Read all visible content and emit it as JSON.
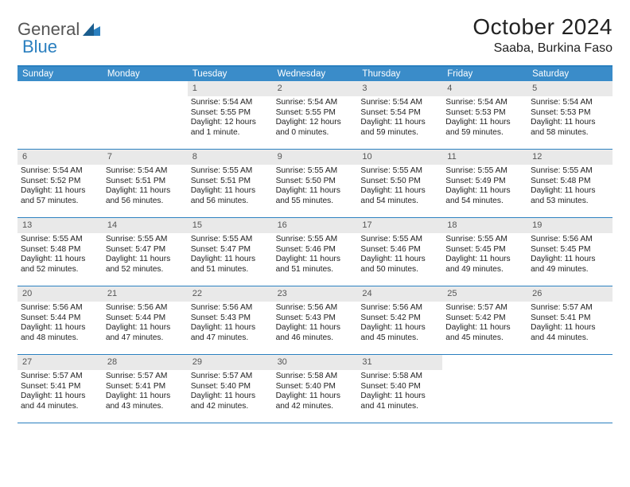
{
  "logo": {
    "word1": "General",
    "word2": "Blue"
  },
  "title": "October 2024",
  "location": "Saaba, Burkina Faso",
  "colors": {
    "header_bg": "#3a8cc9",
    "header_fg": "#ffffff",
    "border": "#2a7fbf",
    "daynum_bg": "#e9e9e9",
    "daynum_fg": "#555555",
    "background": "#ffffff",
    "text": "#222222"
  },
  "fonts": {
    "title_size_pt": 21,
    "subtitle_size_pt": 12,
    "header_size_pt": 9,
    "body_size_pt": 8
  },
  "type": "table",
  "dow": [
    "Sunday",
    "Monday",
    "Tuesday",
    "Wednesday",
    "Thursday",
    "Friday",
    "Saturday"
  ],
  "leading_blanks": 2,
  "days": [
    {
      "n": "1",
      "s": "Sunrise: 5:54 AM",
      "t": "Sunset: 5:55 PM",
      "d": "Daylight: 12 hours and 1 minute."
    },
    {
      "n": "2",
      "s": "Sunrise: 5:54 AM",
      "t": "Sunset: 5:55 PM",
      "d": "Daylight: 12 hours and 0 minutes."
    },
    {
      "n": "3",
      "s": "Sunrise: 5:54 AM",
      "t": "Sunset: 5:54 PM",
      "d": "Daylight: 11 hours and 59 minutes."
    },
    {
      "n": "4",
      "s": "Sunrise: 5:54 AM",
      "t": "Sunset: 5:53 PM",
      "d": "Daylight: 11 hours and 59 minutes."
    },
    {
      "n": "5",
      "s": "Sunrise: 5:54 AM",
      "t": "Sunset: 5:53 PM",
      "d": "Daylight: 11 hours and 58 minutes."
    },
    {
      "n": "6",
      "s": "Sunrise: 5:54 AM",
      "t": "Sunset: 5:52 PM",
      "d": "Daylight: 11 hours and 57 minutes."
    },
    {
      "n": "7",
      "s": "Sunrise: 5:54 AM",
      "t": "Sunset: 5:51 PM",
      "d": "Daylight: 11 hours and 56 minutes."
    },
    {
      "n": "8",
      "s": "Sunrise: 5:55 AM",
      "t": "Sunset: 5:51 PM",
      "d": "Daylight: 11 hours and 56 minutes."
    },
    {
      "n": "9",
      "s": "Sunrise: 5:55 AM",
      "t": "Sunset: 5:50 PM",
      "d": "Daylight: 11 hours and 55 minutes."
    },
    {
      "n": "10",
      "s": "Sunrise: 5:55 AM",
      "t": "Sunset: 5:50 PM",
      "d": "Daylight: 11 hours and 54 minutes."
    },
    {
      "n": "11",
      "s": "Sunrise: 5:55 AM",
      "t": "Sunset: 5:49 PM",
      "d": "Daylight: 11 hours and 54 minutes."
    },
    {
      "n": "12",
      "s": "Sunrise: 5:55 AM",
      "t": "Sunset: 5:48 PM",
      "d": "Daylight: 11 hours and 53 minutes."
    },
    {
      "n": "13",
      "s": "Sunrise: 5:55 AM",
      "t": "Sunset: 5:48 PM",
      "d": "Daylight: 11 hours and 52 minutes."
    },
    {
      "n": "14",
      "s": "Sunrise: 5:55 AM",
      "t": "Sunset: 5:47 PM",
      "d": "Daylight: 11 hours and 52 minutes."
    },
    {
      "n": "15",
      "s": "Sunrise: 5:55 AM",
      "t": "Sunset: 5:47 PM",
      "d": "Daylight: 11 hours and 51 minutes."
    },
    {
      "n": "16",
      "s": "Sunrise: 5:55 AM",
      "t": "Sunset: 5:46 PM",
      "d": "Daylight: 11 hours and 51 minutes."
    },
    {
      "n": "17",
      "s": "Sunrise: 5:55 AM",
      "t": "Sunset: 5:46 PM",
      "d": "Daylight: 11 hours and 50 minutes."
    },
    {
      "n": "18",
      "s": "Sunrise: 5:55 AM",
      "t": "Sunset: 5:45 PM",
      "d": "Daylight: 11 hours and 49 minutes."
    },
    {
      "n": "19",
      "s": "Sunrise: 5:56 AM",
      "t": "Sunset: 5:45 PM",
      "d": "Daylight: 11 hours and 49 minutes."
    },
    {
      "n": "20",
      "s": "Sunrise: 5:56 AM",
      "t": "Sunset: 5:44 PM",
      "d": "Daylight: 11 hours and 48 minutes."
    },
    {
      "n": "21",
      "s": "Sunrise: 5:56 AM",
      "t": "Sunset: 5:44 PM",
      "d": "Daylight: 11 hours and 47 minutes."
    },
    {
      "n": "22",
      "s": "Sunrise: 5:56 AM",
      "t": "Sunset: 5:43 PM",
      "d": "Daylight: 11 hours and 47 minutes."
    },
    {
      "n": "23",
      "s": "Sunrise: 5:56 AM",
      "t": "Sunset: 5:43 PM",
      "d": "Daylight: 11 hours and 46 minutes."
    },
    {
      "n": "24",
      "s": "Sunrise: 5:56 AM",
      "t": "Sunset: 5:42 PM",
      "d": "Daylight: 11 hours and 45 minutes."
    },
    {
      "n": "25",
      "s": "Sunrise: 5:57 AM",
      "t": "Sunset: 5:42 PM",
      "d": "Daylight: 11 hours and 45 minutes."
    },
    {
      "n": "26",
      "s": "Sunrise: 5:57 AM",
      "t": "Sunset: 5:41 PM",
      "d": "Daylight: 11 hours and 44 minutes."
    },
    {
      "n": "27",
      "s": "Sunrise: 5:57 AM",
      "t": "Sunset: 5:41 PM",
      "d": "Daylight: 11 hours and 44 minutes."
    },
    {
      "n": "28",
      "s": "Sunrise: 5:57 AM",
      "t": "Sunset: 5:41 PM",
      "d": "Daylight: 11 hours and 43 minutes."
    },
    {
      "n": "29",
      "s": "Sunrise: 5:57 AM",
      "t": "Sunset: 5:40 PM",
      "d": "Daylight: 11 hours and 42 minutes."
    },
    {
      "n": "30",
      "s": "Sunrise: 5:58 AM",
      "t": "Sunset: 5:40 PM",
      "d": "Daylight: 11 hours and 42 minutes."
    },
    {
      "n": "31",
      "s": "Sunrise: 5:58 AM",
      "t": "Sunset: 5:40 PM",
      "d": "Daylight: 11 hours and 41 minutes."
    }
  ]
}
